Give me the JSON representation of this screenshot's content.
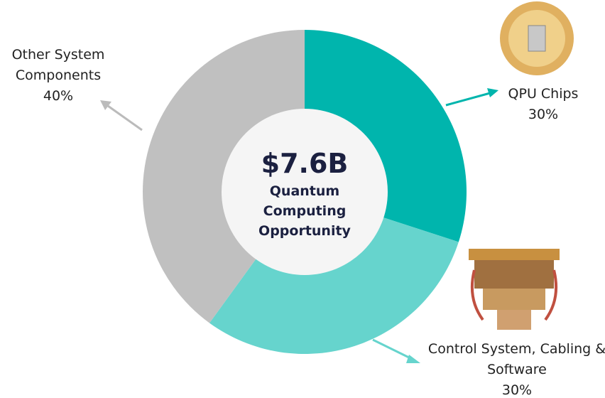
{
  "chart_data": {
    "type": "pie",
    "donut": true,
    "title": "$7.6B",
    "subtitle": "Quantum Computing Opportunity",
    "categories": [
      "QPU Chips",
      "Control System, Cabling & Software",
      "Other System Components"
    ],
    "values": [
      30,
      30,
      40
    ],
    "value_labels": [
      "30%",
      "30%",
      "40%"
    ],
    "colors": [
      "#00b5ad",
      "#66d4cd",
      "#c0c0c0"
    ]
  }
}
